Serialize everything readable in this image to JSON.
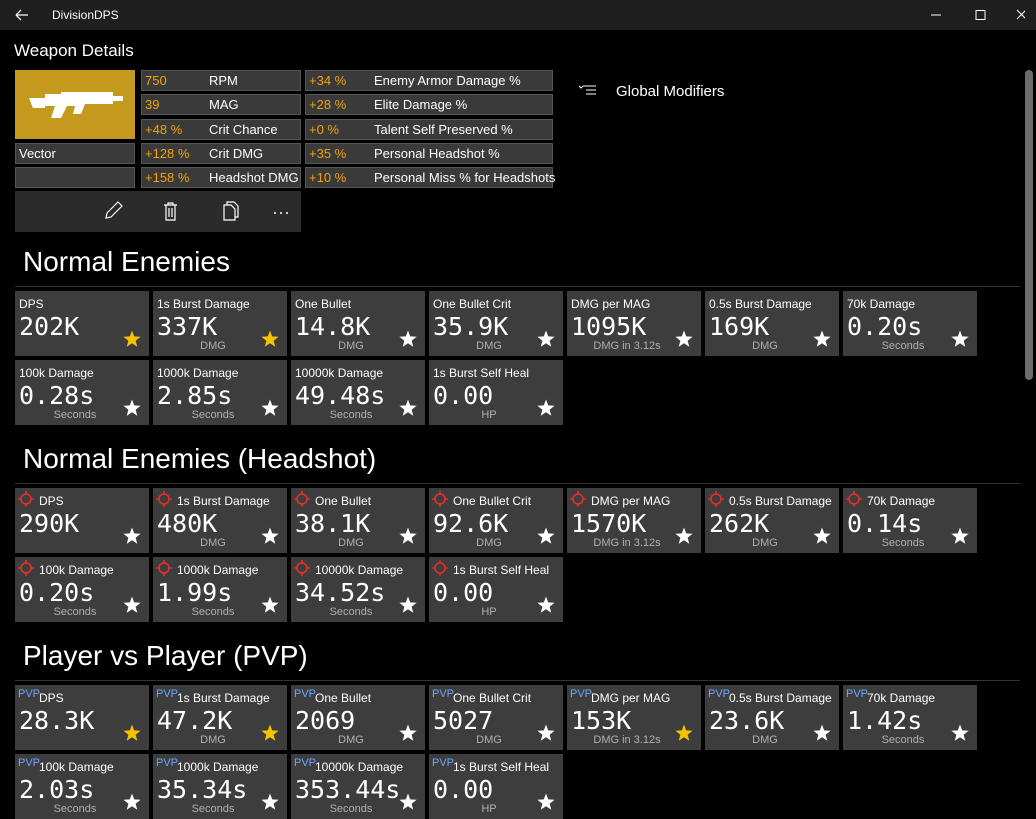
{
  "window": {
    "title": "DivisionDPS"
  },
  "page": {
    "title": "Weapon Details",
    "global_modifiers": "Global Modifiers"
  },
  "weapon": {
    "name": "Vector",
    "stats_left": [
      [
        "750",
        "RPM"
      ],
      [
        "39",
        "MAG"
      ],
      [
        "+48 %",
        "Crit Chance"
      ],
      [
        "+128 %",
        "Crit DMG"
      ],
      [
        "+158 %",
        "Headshot DMG"
      ]
    ],
    "stats_right": [
      [
        "+34 %",
        "Enemy Armor Damage %"
      ],
      [
        "+28 %",
        "Elite Damage %"
      ],
      [
        "+0 %",
        "Talent Self Preserved %"
      ],
      [
        "+35 %",
        "Personal Headshot %"
      ],
      [
        "+10 %",
        "Personal Miss % for Headshots"
      ]
    ]
  },
  "sections": [
    {
      "heading": "Normal Enemies",
      "icon": "none",
      "tiles": [
        {
          "title": "DPS",
          "value": "202K",
          "starred": true
        },
        {
          "title": "1s Burst Damage",
          "value": "337K",
          "unit": "DMG",
          "starred": true
        },
        {
          "title": "One Bullet",
          "value": "14.8K",
          "unit": "DMG",
          "starred": false
        },
        {
          "title": "One Bullet Crit",
          "value": "35.9K",
          "unit": "DMG",
          "starred": false
        },
        {
          "title": "DMG per MAG",
          "value": "1095K",
          "unit": "DMG in 3.12s",
          "starred": false
        },
        {
          "title": "0.5s Burst Damage",
          "value": "169K",
          "unit": "DMG",
          "starred": false
        },
        {
          "title": "70k Damage",
          "value": "0.20s",
          "unit": "Seconds",
          "starred": false
        },
        {
          "title": "100k Damage",
          "value": "0.28s",
          "unit": "Seconds",
          "starred": false
        },
        {
          "title": "1000k Damage",
          "value": "2.85s",
          "unit": "Seconds",
          "starred": false
        },
        {
          "title": "10000k Damage",
          "value": "49.48s",
          "unit": "Seconds",
          "starred": false
        },
        {
          "title": "1s Burst Self Heal",
          "value": "0.00",
          "unit": "HP",
          "starred": false
        }
      ]
    },
    {
      "heading": "Normal Enemies (Headshot)",
      "icon": "crosshair",
      "tiles": [
        {
          "title": "DPS",
          "value": "290K",
          "starred": false
        },
        {
          "title": "1s Burst Damage",
          "value": "480K",
          "unit": "DMG",
          "starred": false
        },
        {
          "title": "One Bullet",
          "value": "38.1K",
          "unit": "DMG",
          "starred": false
        },
        {
          "title": "One Bullet Crit",
          "value": "92.6K",
          "unit": "DMG",
          "starred": false
        },
        {
          "title": "DMG per MAG",
          "value": "1570K",
          "unit": "DMG in 3.12s",
          "starred": false
        },
        {
          "title": "0.5s Burst Damage",
          "value": "262K",
          "unit": "DMG",
          "starred": false
        },
        {
          "title": "70k Damage",
          "value": "0.14s",
          "unit": "Seconds",
          "starred": false
        },
        {
          "title": "100k Damage",
          "value": "0.20s",
          "unit": "Seconds",
          "starred": false
        },
        {
          "title": "1000k Damage",
          "value": "1.99s",
          "unit": "Seconds",
          "starred": false
        },
        {
          "title": "10000k Damage",
          "value": "34.52s",
          "unit": "Seconds",
          "starred": false
        },
        {
          "title": "1s Burst Self Heal",
          "value": "0.00",
          "unit": "HP",
          "starred": false
        }
      ]
    },
    {
      "heading": "Player vs Player (PVP)",
      "icon": "tag",
      "tag": "PVP",
      "tiles": [
        {
          "title": "DPS",
          "value": "28.3K",
          "starred": true
        },
        {
          "title": "1s Burst Damage",
          "value": "47.2K",
          "unit": "DMG",
          "starred": true
        },
        {
          "title": "One Bullet",
          "value": "2069",
          "unit": "DMG",
          "starred": false
        },
        {
          "title": "One Bullet Crit",
          "value": "5027",
          "unit": "DMG",
          "starred": false
        },
        {
          "title": "DMG per MAG",
          "value": "153K",
          "unit": "DMG in 3.12s",
          "starred": true
        },
        {
          "title": "0.5s Burst Damage",
          "value": "23.6K",
          "unit": "DMG",
          "starred": false
        },
        {
          "title": "70k Damage",
          "value": "1.42s",
          "unit": "Seconds",
          "starred": false
        },
        {
          "title": "100k Damage",
          "value": "2.03s",
          "unit": "Seconds",
          "starred": false
        },
        {
          "title": "1000k Damage",
          "value": "35.34s",
          "unit": "Seconds",
          "starred": false
        },
        {
          "title": "10000k Damage",
          "value": "353.44s",
          "unit": "Seconds",
          "starred": false
        },
        {
          "title": "1s Burst Self Heal",
          "value": "0.00",
          "unit": "HP",
          "starred": false
        }
      ]
    }
  ]
}
